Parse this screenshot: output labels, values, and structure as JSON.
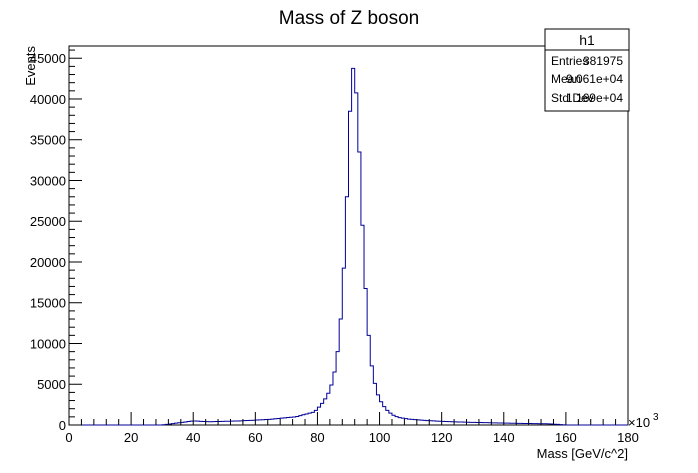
{
  "chart_data": {
    "type": "histogram",
    "title": "Mass of Z boson",
    "xlabel": "Mass [GeV/c^2]",
    "ylabel": "Events",
    "x_exponent": "×10",
    "x_exponent_power": "3",
    "xlim": [
      0,
      180
    ],
    "ylim": [
      0,
      46500
    ],
    "x_ticks": [
      0,
      20,
      40,
      60,
      80,
      100,
      120,
      140,
      160,
      180
    ],
    "x_tick_labels": [
      "0",
      "20",
      "40",
      "60",
      "80",
      "100",
      "120",
      "140",
      "160",
      "180"
    ],
    "y_ticks": [
      0,
      5000,
      10000,
      15000,
      20000,
      25000,
      30000,
      35000,
      40000,
      45000
    ],
    "y_tick_labels": [
      "0",
      "5000",
      "10000",
      "15000",
      "20000",
      "25000",
      "30000",
      "35000",
      "40000",
      "45000"
    ],
    "bin_width": 1,
    "bins": [
      [
        0,
        0
      ],
      [
        30,
        0
      ],
      [
        40,
        500
      ],
      [
        45,
        400
      ],
      [
        50,
        450
      ],
      [
        55,
        500
      ],
      [
        60,
        600
      ],
      [
        65,
        700
      ],
      [
        70,
        900
      ],
      [
        73,
        1000
      ],
      [
        75,
        1200
      ],
      [
        77,
        1400
      ],
      [
        79,
        1600
      ],
      [
        80,
        2000
      ],
      [
        81,
        2400
      ],
      [
        82,
        2900
      ],
      [
        83,
        3500
      ],
      [
        84,
        4300
      ],
      [
        85,
        5500
      ],
      [
        86,
        7500
      ],
      [
        87,
        10500
      ],
      [
        88,
        15500
      ],
      [
        89,
        23000
      ],
      [
        90,
        33000
      ],
      [
        91,
        44000
      ],
      [
        92,
        43500
      ],
      [
        93,
        38000
      ],
      [
        94,
        29000
      ],
      [
        95,
        20000
      ],
      [
        96,
        13500
      ],
      [
        97,
        8500
      ],
      [
        98,
        6000
      ],
      [
        99,
        4200
      ],
      [
        100,
        3200
      ],
      [
        101,
        2500
      ],
      [
        102,
        2000
      ],
      [
        103,
        1600
      ],
      [
        104,
        1300
      ],
      [
        105,
        1100
      ],
      [
        106,
        950
      ],
      [
        108,
        800
      ],
      [
        110,
        700
      ],
      [
        115,
        550
      ],
      [
        120,
        450
      ],
      [
        125,
        380
      ],
      [
        130,
        320
      ],
      [
        135,
        280
      ],
      [
        140,
        240
      ],
      [
        145,
        200
      ],
      [
        150,
        170
      ],
      [
        155,
        140
      ],
      [
        160,
        0
      ],
      [
        180,
        0
      ]
    ],
    "line_color": "#000099",
    "stats_box": {
      "title": "h1",
      "rows": [
        {
          "label": "Entries",
          "value": "381975"
        },
        {
          "label": "Mean",
          "value": "9.061e+04"
        },
        {
          "label": "Std Dev",
          "value": "1.169e+04"
        }
      ]
    }
  }
}
